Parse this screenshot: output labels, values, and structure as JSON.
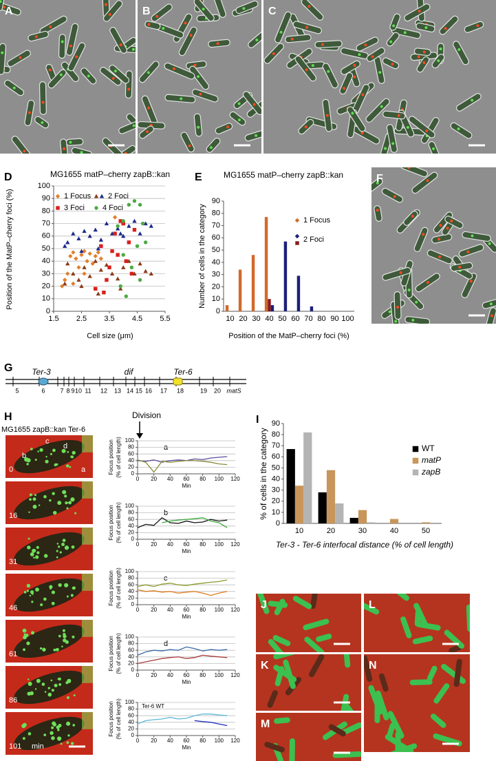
{
  "image_panels": [
    {
      "label": "A"
    },
    {
      "label": "B"
    },
    {
      "label": "C"
    },
    {
      "label": "F"
    },
    {
      "label": "J"
    },
    {
      "label": "K"
    },
    {
      "label": "L"
    },
    {
      "label": "M"
    },
    {
      "label": "N"
    }
  ],
  "genome_map": {
    "panel": "G",
    "loci": [
      "Ter-3",
      "dif",
      "Ter-6"
    ],
    "positions": [
      "5",
      "6",
      "7",
      "8",
      "9",
      "10",
      "11",
      "12",
      "13",
      "14",
      "15",
      "16",
      "17",
      "18",
      "19",
      "20",
      "matS"
    ]
  },
  "time_lapse": {
    "panel": "H",
    "title": "MG1655 zapB::kan  Ter-6",
    "division": "Division",
    "frames": [
      "0",
      "16",
      "31",
      "46",
      "61",
      "86",
      "101"
    ],
    "unit": "min",
    "cells": [
      "a",
      "b",
      "c",
      "d"
    ]
  },
  "chart_data": [
    {
      "panel": "D",
      "type": "scatter",
      "title": "MG1655 matP–cherry zapB::kan",
      "xlabel": "Cell size (μm)",
      "ylabel": "Position of the MatP–cherry foci (%)",
      "xlim": [
        1.5,
        5.5
      ],
      "xticks": [
        1.5,
        2.5,
        3.5,
        4.5,
        5.5
      ],
      "ylim": [
        0,
        100
      ],
      "yticks": [
        0,
        10,
        20,
        30,
        40,
        50,
        60,
        70,
        80,
        90,
        100
      ],
      "grid": true,
      "legend": "top-left",
      "series": [
        {
          "name": "1 Focus",
          "color": "#e0802c",
          "marker": "diamond",
          "x": [
            1.8,
            1.9,
            2.0,
            2.1,
            2.2,
            2.2,
            2.3,
            2.4,
            2.5,
            2.6,
            2.6,
            2.7,
            2.8,
            2.9,
            3.0,
            3.1,
            3.2,
            3.7
          ],
          "values": [
            20,
            25,
            30,
            44,
            47,
            22,
            42,
            35,
            45,
            48,
            30,
            40,
            46,
            38,
            44,
            47,
            42,
            75
          ]
        },
        {
          "name": "2 Foci",
          "color": "#1c2a8c",
          "marker": "triangle",
          "x": [
            1.9,
            2.0,
            2.2,
            2.4,
            2.5,
            2.6,
            2.8,
            3.0,
            3.1,
            3.2,
            3.4,
            3.6,
            3.8,
            3.9,
            4.0,
            4.2,
            4.4,
            4.6,
            4.8,
            5.0
          ],
          "values": [
            52,
            55,
            62,
            58,
            48,
            64,
            60,
            65,
            50,
            57,
            70,
            62,
            66,
            62,
            60,
            68,
            72,
            62,
            70,
            68
          ],
          "lower": {
            "color": "#8b3a16",
            "marker": "triangle",
            "values": [
              22,
              38,
              30,
              25,
              20,
              35,
              28,
              40,
              14,
              33,
              37,
              30,
              26,
              18,
              35,
              40,
              30,
              38,
              32,
              30
            ]
          }
        },
        {
          "name": "3 Foci",
          "color": "#d8201c",
          "marker": "square",
          "x": [
            3.0,
            3.2,
            3.3,
            3.4,
            3.5,
            3.6,
            3.7,
            3.8,
            3.9,
            4.0,
            4.1,
            4.2,
            4.3,
            4.4
          ],
          "values": [
            18,
            52,
            15,
            25,
            35,
            48,
            62,
            45,
            72,
            70,
            40,
            55,
            30,
            65
          ]
        },
        {
          "name": "4 Foci",
          "color": "#4caa44",
          "marker": "circle",
          "x": [
            3.8,
            3.9,
            4.0,
            4.0,
            4.1,
            4.2,
            4.3,
            4.4,
            4.5,
            4.6,
            4.6,
            4.7,
            4.8
          ],
          "values": [
            68,
            20,
            72,
            45,
            12,
            85,
            35,
            88,
            52,
            85,
            25,
            70,
            55
          ]
        }
      ]
    },
    {
      "panel": "E",
      "type": "bar",
      "title": "MG1655 matP–cherry zapB::kan",
      "xlabel": "Position of the MatP–cherry foci (%)",
      "ylabel": "Number of cells in the category",
      "categories": [
        "10",
        "20",
        "30",
        "40",
        "50",
        "60",
        "70",
        "80",
        "90",
        "100"
      ],
      "ylim": [
        0,
        90
      ],
      "yticks": [
        0,
        10,
        20,
        30,
        40,
        50,
        60,
        70,
        80,
        90
      ],
      "grid": false,
      "legend": "right",
      "series": [
        {
          "name": "1 Focus",
          "color": "#d2692a",
          "marker": "diamond",
          "values": [
            5,
            34,
            46,
            77,
            0,
            0,
            0,
            0,
            0,
            0
          ]
        },
        {
          "name": "2 Foci",
          "color": "#1c1f7a",
          "marker": "diamond",
          "values": [
            0,
            0,
            0,
            5,
            57,
            29,
            4,
            0,
            0,
            0
          ],
          "lower": {
            "color": "#8b1a1a",
            "marker": "square",
            "values": [
              0,
              0,
              0,
              10,
              0,
              0,
              0,
              0,
              0,
              0
            ]
          }
        }
      ]
    },
    {
      "panel": "I",
      "type": "bar",
      "xlabel": "Ter-3 - Ter-6 interfocal distance (% of cell length)",
      "ylabel": "% of cells in the category",
      "categories": [
        "10",
        "20",
        "30",
        "40",
        "50"
      ],
      "ylim": [
        0,
        90
      ],
      "yticks": [
        0,
        10,
        20,
        30,
        40,
        50,
        60,
        70,
        80,
        90
      ],
      "grid": false,
      "legend": "top-right",
      "series": [
        {
          "name": "WT",
          "color": "#000000",
          "marker": "square",
          "values": [
            67,
            28,
            5,
            0,
            0
          ]
        },
        {
          "name": "matP",
          "color": "#c8965a",
          "marker": "square",
          "values": [
            34,
            48,
            12,
            4,
            1
          ]
        },
        {
          "name": "zapB",
          "color": "#b4b4b4",
          "marker": "square",
          "values": [
            82,
            18,
            1,
            0,
            0
          ]
        }
      ]
    },
    {
      "type": "line",
      "label": "a",
      "ylabel": [
        "Focus position",
        "(% of cell length)"
      ],
      "xlabel": "Min",
      "x": [
        0,
        10,
        20,
        30,
        40,
        50,
        60,
        70,
        80,
        90,
        100,
        110
      ],
      "xlim": [
        0,
        120
      ],
      "xticks": [
        0,
        20,
        40,
        60,
        80,
        100,
        120
      ],
      "ylim": [
        0,
        100
      ],
      "yticks": [
        0,
        20,
        40,
        60,
        80,
        100
      ],
      "grid": true,
      "series": [
        {
          "color": "#5a4a9a",
          "values": [
            40,
            38,
            42,
            35,
            40,
            42,
            40,
            45,
            43,
            48,
            50,
            52
          ]
        },
        {
          "color": "#8a8a3a",
          "values": [
            42,
            35,
            5,
            38,
            35,
            38,
            40,
            40,
            38,
            35,
            30,
            28
          ]
        }
      ]
    },
    {
      "type": "line",
      "label": "b",
      "ylabel": [
        "Focus position",
        "(% of cell length)"
      ],
      "xlabel": "Min",
      "x": [
        0,
        10,
        20,
        30,
        40,
        50,
        60,
        70,
        80,
        90,
        100,
        110
      ],
      "xlim": [
        0,
        120
      ],
      "xticks": [
        0,
        20,
        40,
        60,
        80,
        100,
        120
      ],
      "ylim": [
        0,
        100
      ],
      "yticks": [
        0,
        20,
        40,
        60,
        80,
        100
      ],
      "grid": true,
      "series": [
        {
          "color": "#111111",
          "values": [
            35,
            45,
            42,
            65,
            50,
            48,
            55,
            50,
            52,
            60,
            55,
            58
          ]
        },
        {
          "color": "#3aa83a",
          "values": [
            null,
            null,
            null,
            50,
            55,
            58,
            60,
            62,
            65,
            55,
            50,
            35
          ]
        }
      ]
    },
    {
      "type": "line",
      "label": "c",
      "ylabel": [
        "Focus position",
        "(% of cell length)"
      ],
      "xlabel": "Min",
      "x": [
        0,
        10,
        20,
        30,
        40,
        50,
        60,
        70,
        80,
        90,
        100,
        110
      ],
      "xlim": [
        0,
        120
      ],
      "xticks": [
        0,
        20,
        40,
        60,
        80,
        100,
        120
      ],
      "ylim": [
        0,
        100
      ],
      "yticks": [
        0,
        20,
        40,
        60,
        80,
        100
      ],
      "grid": true,
      "series": [
        {
          "color": "#8a9a2a",
          "values": [
            55,
            60,
            55,
            62,
            65,
            60,
            58,
            62,
            65,
            68,
            70,
            75
          ]
        },
        {
          "color": "#e07a1a",
          "values": [
            45,
            40,
            42,
            38,
            40,
            35,
            38,
            40,
            35,
            28,
            35,
            40
          ]
        }
      ]
    },
    {
      "type": "line",
      "label": "d",
      "ylabel": [
        "Focus position",
        "(% of cell length)"
      ],
      "xlabel": "Min",
      "x": [
        0,
        10,
        20,
        30,
        40,
        50,
        60,
        70,
        80,
        90,
        100,
        110
      ],
      "xlim": [
        0,
        120
      ],
      "xticks": [
        0,
        20,
        40,
        60,
        80,
        100,
        120
      ],
      "ylim": [
        0,
        100
      ],
      "yticks": [
        0,
        20,
        40,
        60,
        80,
        100
      ],
      "grid": true,
      "series": [
        {
          "color": "#3a6aa8",
          "values": [
            45,
            55,
            60,
            58,
            62,
            60,
            70,
            65,
            58,
            62,
            60,
            62
          ]
        },
        {
          "color": "#a83a3a",
          "values": [
            20,
            25,
            30,
            35,
            38,
            40,
            35,
            38,
            45,
            42,
            40,
            38
          ]
        }
      ]
    },
    {
      "type": "line",
      "label": "Ter-6 WT",
      "ylabel": [
        "Focus position",
        "(% of cell length)"
      ],
      "xlabel": "Min",
      "x": [
        0,
        10,
        20,
        30,
        40,
        50,
        60,
        70,
        80,
        90,
        100,
        110
      ],
      "xlim": [
        0,
        120
      ],
      "xticks": [
        0,
        20,
        40,
        60,
        80,
        100,
        120
      ],
      "ylim": [
        0,
        100
      ],
      "yticks": [
        0,
        20,
        40,
        60,
        80,
        100
      ],
      "grid": true,
      "series": [
        {
          "color": "#5ab8d8",
          "values": [
            35,
            45,
            48,
            50,
            55,
            50,
            52,
            60,
            65,
            65,
            62,
            60
          ]
        },
        {
          "color": "#1a2ab8",
          "values": [
            null,
            null,
            null,
            null,
            null,
            null,
            null,
            45,
            42,
            40,
            35,
            30
          ]
        }
      ]
    }
  ]
}
